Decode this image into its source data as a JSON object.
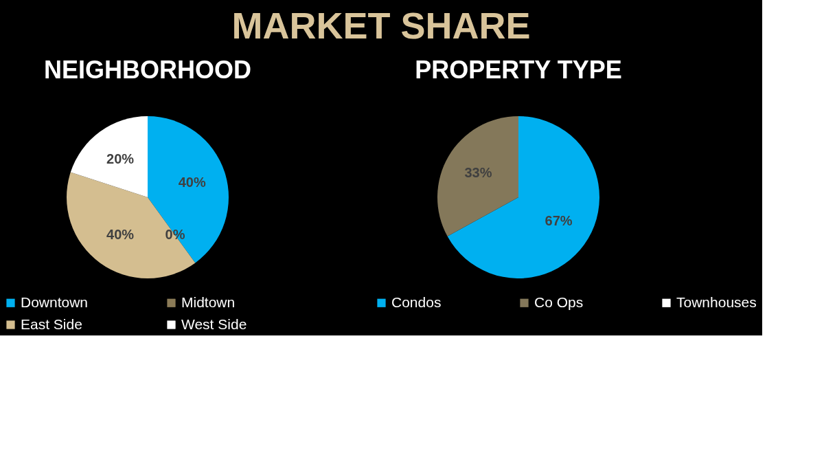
{
  "chart_data": [
    {
      "type": "other",
      "title": "MARKET SHARE"
    },
    {
      "type": "pie",
      "title": "NEIGHBORHOOD",
      "categories": [
        "Downtown",
        "Midtown",
        "East Side",
        "West Side"
      ],
      "values": [
        40,
        0,
        40,
        20
      ],
      "colors": [
        "#00b0f0",
        "#8b7b57",
        "#d4be90",
        "#ffffff"
      ],
      "value_labels": [
        "40%",
        "0%",
        "40%",
        "20%"
      ],
      "legend": "bottom"
    },
    {
      "type": "pie",
      "title": "PROPERTY TYPE",
      "categories": [
        "Condos",
        "Co Ops",
        "Townhouses"
      ],
      "values": [
        67,
        33,
        0
      ],
      "colors": [
        "#00b0f0",
        "#84785a",
        "#ffffff"
      ],
      "value_labels": [
        "67%",
        "33%",
        null
      ],
      "legend": "bottom"
    }
  ]
}
